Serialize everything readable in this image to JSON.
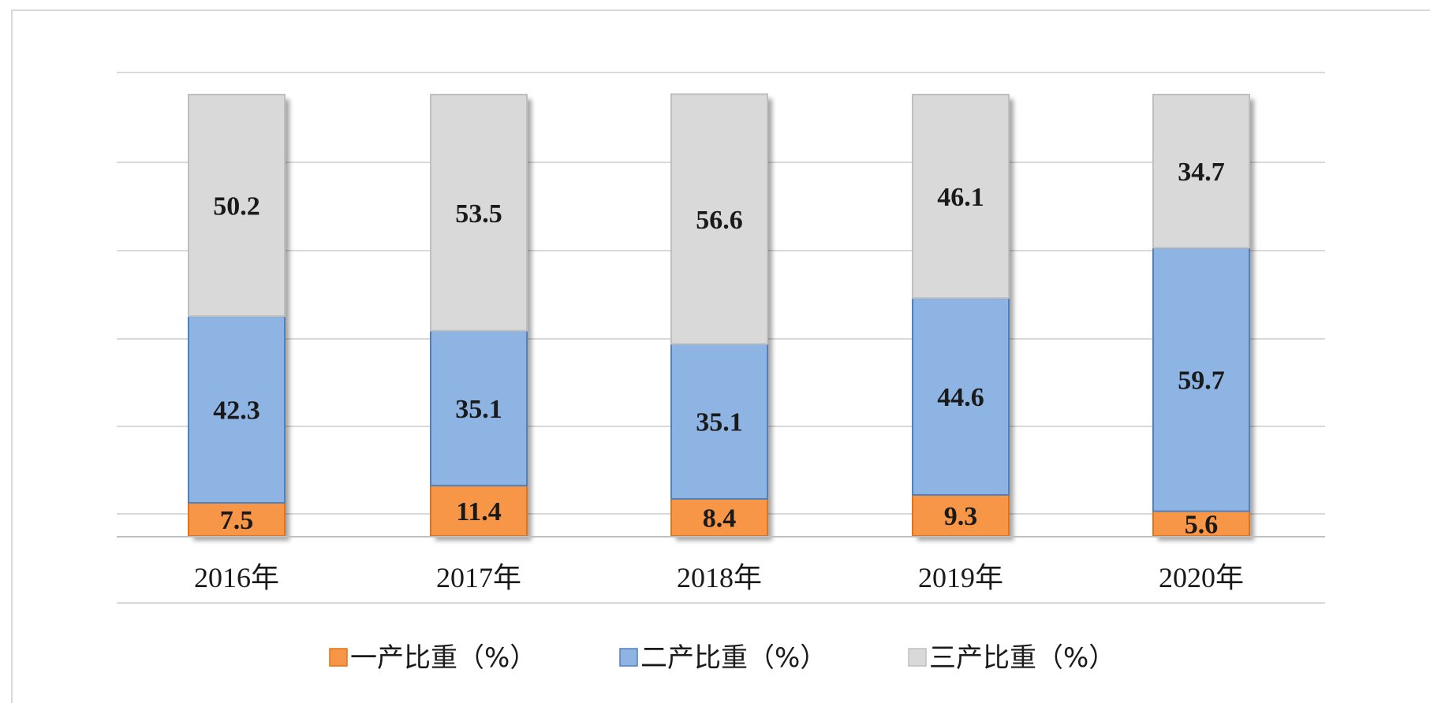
{
  "chart_data": {
    "type": "bar",
    "stacked": true,
    "categories": [
      "2016年",
      "2017年",
      "2018年",
      "2019年",
      "2020年"
    ],
    "series": [
      {
        "name": "一产比重（%）",
        "color": "#f79646",
        "values": [
          7.5,
          11.4,
          8.4,
          9.3,
          5.6
        ]
      },
      {
        "name": "二产比重（%）",
        "color": "#8eb4e3",
        "values": [
          42.3,
          35.1,
          35.1,
          44.6,
          59.7
        ]
      },
      {
        "name": "三产比重（%）",
        "color": "#d9d9d9",
        "values": [
          50.2,
          53.5,
          56.6,
          46.1,
          34.7
        ]
      }
    ],
    "ylim": [
      0,
      100
    ],
    "grid": true,
    "legend": "bottom",
    "data_labels": true
  }
}
